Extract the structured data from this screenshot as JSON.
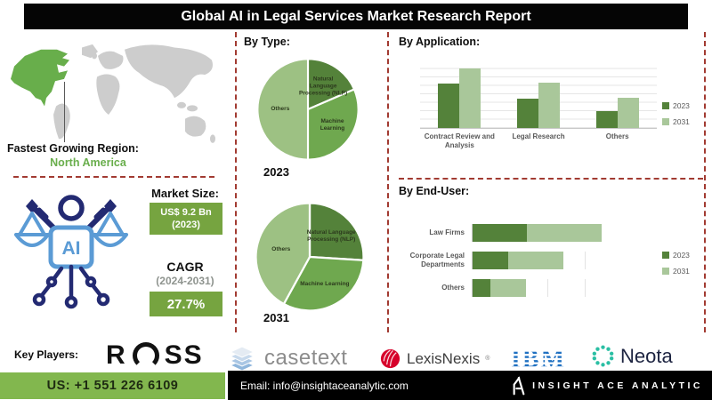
{
  "title": "Global AI in Legal Services Market Research Report",
  "map": {
    "region_label": "Fastest Growing Region:",
    "region_value": "North America"
  },
  "by_type": {
    "heading": "By Type:"
  },
  "by_application": {
    "heading": "By Application:"
  },
  "by_end_user": {
    "heading": "By End-User:"
  },
  "market": {
    "size_label": "Market Size:",
    "size_value": "US$ 9.2 Bn",
    "size_year": "(2023)",
    "cagr_label": "CAGR",
    "cagr_period": "(2024-2031)",
    "cagr_value": "27.7%"
  },
  "ai_icon": {
    "chip_text": "AI"
  },
  "key_players": {
    "label": "Key Players:",
    "players": [
      {
        "name": "ROSS",
        "prefix": "R",
        "suffix": "SS"
      },
      {
        "name": "casetext"
      },
      {
        "name": "LexisNexis",
        "reg": "®"
      },
      {
        "name": "IBM"
      },
      {
        "name": "Neota"
      }
    ]
  },
  "footer": {
    "phone": "US: +1 551 226 6109",
    "email": "Email: info@insightaceanalytic.com",
    "brand": "INSIGHT ACE ANALYTIC"
  },
  "colors": {
    "accent_dark_green": "#54823a",
    "accent_mid_green": "#6fa84f",
    "accent_light_green": "#9dc183",
    "legend_light_green": "#a9c79a",
    "market_box_green": "#76a440",
    "footer_green": "#82b74e",
    "dashed_divider_red": "#a23b32",
    "icon_navy": "#232a72",
    "icon_blue": "#5b9bd5",
    "ibm_blue": "#1f70c1",
    "neota_teal": "#2bbfa4",
    "lexis_red": "#d6002a",
    "map_gray": "#cdcdcd",
    "map_highlight_green": "#68ae4b"
  },
  "chart_data": [
    {
      "type": "pie",
      "title": "By Type — 2023",
      "year": "2023",
      "labels": [
        "Natural Language Processing (NLP)",
        "Machine Learning",
        "Others"
      ],
      "values": [
        18.5,
        31.5,
        50
      ],
      "colors": [
        "#54823a",
        "#6fa84f",
        "#9dc183"
      ],
      "label_r": [
        0.55,
        0.58,
        0.55
      ]
    },
    {
      "type": "pie",
      "title": "By Type — 2031",
      "year": "2031",
      "labels": [
        "Natural Language Processing (NLP)",
        "Machine Learning",
        "Others"
      ],
      "values": [
        26,
        32,
        42
      ],
      "colors": [
        "#54823a",
        "#6fa84f",
        "#9dc183"
      ],
      "label_r": [
        0.55,
        0.58,
        0.55
      ]
    },
    {
      "type": "bar",
      "title": "By Application:",
      "categories": [
        "Contract Review and Analysis",
        "Legal Research",
        "Others"
      ],
      "series": [
        {
          "name": "2023",
          "color": "#54823a",
          "values": [
            66,
            44,
            25
          ]
        },
        {
          "name": "2031",
          "color": "#a9c79a",
          "values": [
            88,
            67,
            45
          ]
        }
      ],
      "ylim": [
        0,
        100
      ],
      "grid": true,
      "legend_position": "right"
    },
    {
      "type": "bar",
      "orientation": "horizontal-stacked",
      "title": "By End-User:",
      "categories": [
        "Law Firms",
        "Corporate Legal Departments",
        "Others"
      ],
      "series": [
        {
          "name": "2023",
          "color": "#54823a",
          "values": [
            36,
            24,
            12
          ]
        },
        {
          "name": "2031",
          "color": "#a9c79a",
          "values": [
            50,
            37,
            24
          ]
        }
      ],
      "xlim": [
        0,
        100
      ],
      "grid": true,
      "legend_position": "right"
    }
  ]
}
